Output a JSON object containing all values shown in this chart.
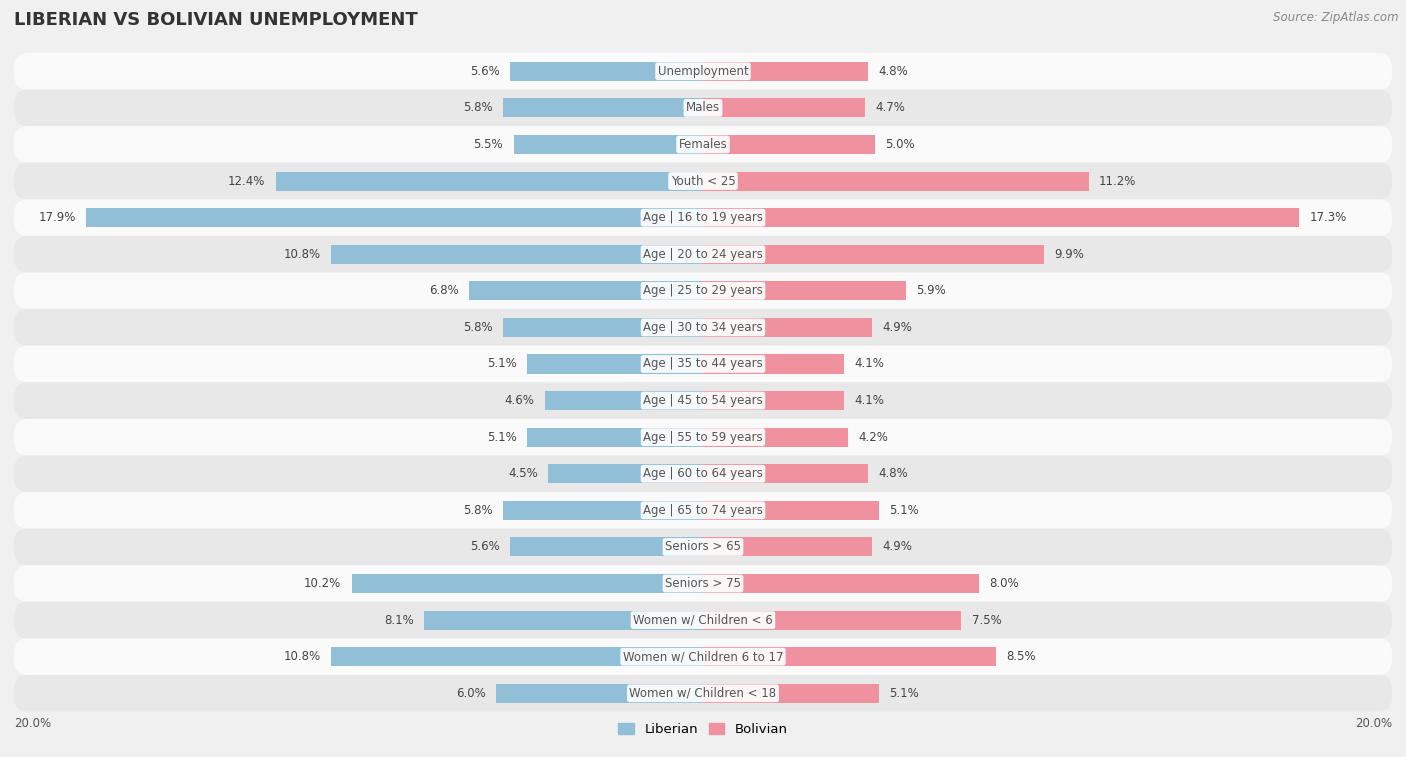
{
  "title": "LIBERIAN VS BOLIVIAN UNEMPLOYMENT",
  "source": "Source: ZipAtlas.com",
  "categories": [
    "Unemployment",
    "Males",
    "Females",
    "Youth < 25",
    "Age | 16 to 19 years",
    "Age | 20 to 24 years",
    "Age | 25 to 29 years",
    "Age | 30 to 34 years",
    "Age | 35 to 44 years",
    "Age | 45 to 54 years",
    "Age | 55 to 59 years",
    "Age | 60 to 64 years",
    "Age | 65 to 74 years",
    "Seniors > 65",
    "Seniors > 75",
    "Women w/ Children < 6",
    "Women w/ Children 6 to 17",
    "Women w/ Children < 18"
  ],
  "liberian": [
    5.6,
    5.8,
    5.5,
    12.4,
    17.9,
    10.8,
    6.8,
    5.8,
    5.1,
    4.6,
    5.1,
    4.5,
    5.8,
    5.6,
    10.2,
    8.1,
    10.8,
    6.0
  ],
  "bolivian": [
    4.8,
    4.7,
    5.0,
    11.2,
    17.3,
    9.9,
    5.9,
    4.9,
    4.1,
    4.1,
    4.2,
    4.8,
    5.1,
    4.9,
    8.0,
    7.5,
    8.5,
    5.1
  ],
  "liberian_color": "#92bfd8",
  "bolivian_color": "#f0919f",
  "bg_color": "#f0f0f0",
  "row_color_light": "#fafafa",
  "row_color_dark": "#e8e8e8",
  "max_val": 20.0,
  "legend_liberian": "Liberian",
  "legend_bolivian": "Bolivian",
  "title_fontsize": 13,
  "label_fontsize": 8.5,
  "source_fontsize": 8.5
}
